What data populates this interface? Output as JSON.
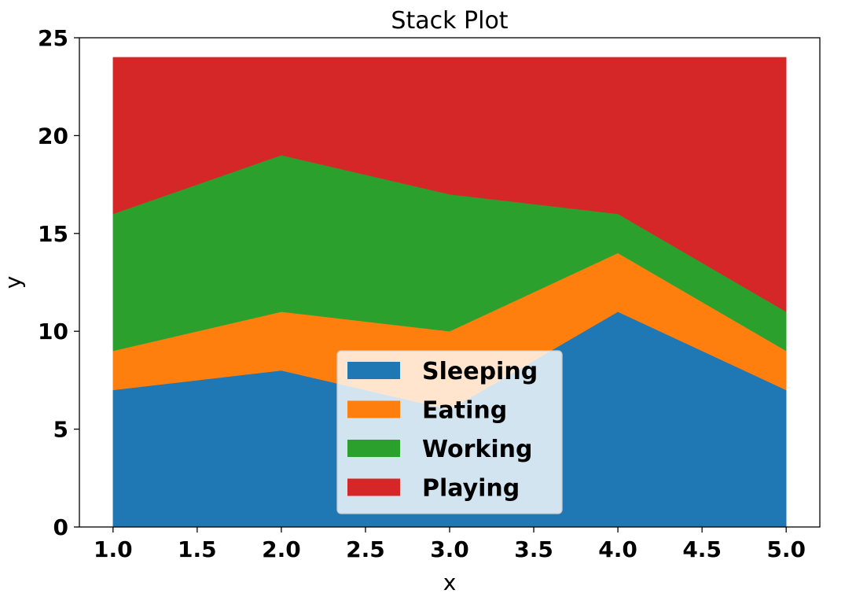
{
  "chart_data": {
    "type": "area",
    "stacked": true,
    "title": "Stack Plot",
    "xlabel": "x",
    "ylabel": "y",
    "x": [
      1,
      2,
      3,
      4,
      5
    ],
    "xlim": [
      0.8,
      5.2
    ],
    "ylim": [
      0,
      25
    ],
    "xticks": [
      "1.0",
      "1.5",
      "2.0",
      "2.5",
      "3.0",
      "3.5",
      "4.0",
      "4.5",
      "5.0"
    ],
    "yticks": [
      "0",
      "5",
      "10",
      "15",
      "20",
      "25"
    ],
    "grid": false,
    "legend_position": "lower-center",
    "series": [
      {
        "name": "Sleeping",
        "values": [
          7,
          8,
          6,
          11,
          7
        ],
        "color": "#1f77b4"
      },
      {
        "name": "Eating",
        "values": [
          2,
          3,
          4,
          3,
          2
        ],
        "color": "#ff7f0e"
      },
      {
        "name": "Working",
        "values": [
          7,
          8,
          7,
          2,
          2
        ],
        "color": "#2ca02c"
      },
      {
        "name": "Playing",
        "values": [
          8,
          5,
          7,
          8,
          13
        ],
        "color": "#d62728"
      }
    ]
  }
}
